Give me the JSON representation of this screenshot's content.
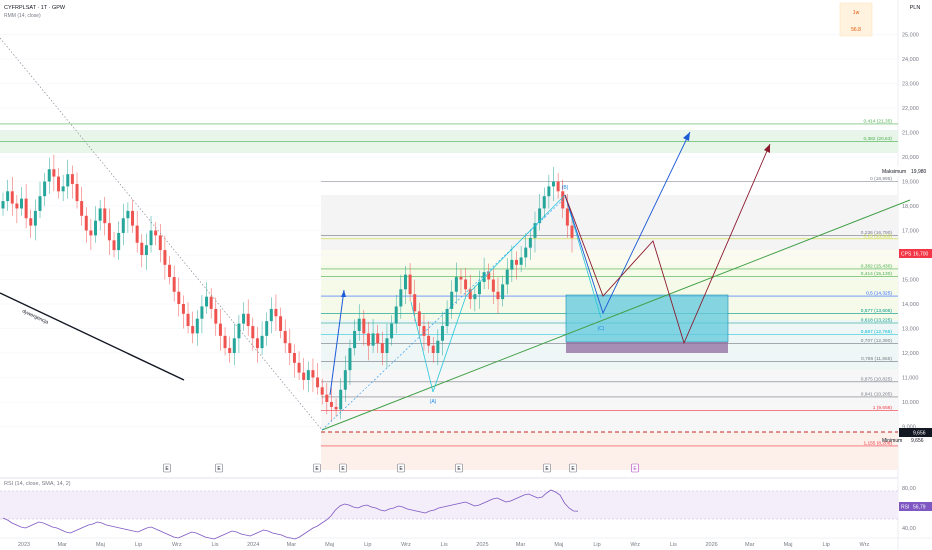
{
  "header": {
    "symbol_line": "CYFRPLSAT · 1T · GPW",
    "indicator_line": "RMM (14, close)"
  },
  "timeframe_box": {
    "label": "1w",
    "value": "56.8"
  },
  "price_axis": {
    "currency": "PLN",
    "ticks": [
      "25,000",
      "24,000",
      "23,000",
      "22,000",
      "21,000",
      "20,000",
      "19,000",
      "18,000",
      "17,000",
      "16,000",
      "15,000",
      "14,000",
      "13,000",
      "12,000",
      "11,000",
      "10,000",
      "9,000"
    ],
    "max_label": "Maksimum",
    "max_value": "19,980",
    "min_label": "Minimum",
    "min_value": "9,656",
    "cps_label": "CPS",
    "cps_value": "16,700",
    "last_value": "9,656"
  },
  "time_axis": {
    "labels": [
      "2023",
      "Mar",
      "Maj",
      "Lip",
      "Wrz",
      "Lis",
      "2024",
      "Mar",
      "Maj",
      "Lip",
      "Wrz",
      "Lis",
      "2025",
      "Mar",
      "Maj",
      "Lip",
      "Wrz",
      "Lis",
      "2026",
      "Mar",
      "Maj",
      "Lip",
      "Wrz"
    ]
  },
  "fibonacci": {
    "levels": [
      {
        "label": "0,414 (21,35)",
        "price": 21.35,
        "color": "#4caf50"
      },
      {
        "label": "0,382 (20,63)",
        "price": 20.63,
        "color": "#4caf50"
      },
      {
        "label": "0 (18,995)",
        "price": 18.995,
        "color": "#787b86"
      },
      {
        "label": "0,236 (16,790)",
        "price": 16.79,
        "color": "#787b86"
      },
      {
        "label": "0,25 (16,660)",
        "price": 16.66,
        "color": "#cddc39"
      },
      {
        "label": "0,382 (15,430)",
        "price": 15.43,
        "color": "#4caf50"
      },
      {
        "label": "0,414 (15,130)",
        "price": 15.13,
        "color": "#4caf50"
      },
      {
        "label": "0,5 (14,325)",
        "price": 14.325,
        "color": "#2962ff"
      },
      {
        "label": "0,577 (13,605)",
        "price": 13.605,
        "color": "#009688"
      },
      {
        "label": "0,618 (13,225)",
        "price": 13.225,
        "color": "#009688"
      },
      {
        "label": "0,667 (12,765)",
        "price": 12.765,
        "color": "#00bcd4"
      },
      {
        "label": "0,707 (12,390)",
        "price": 12.39,
        "color": "#787b86"
      },
      {
        "label": "0,786 (11,655)",
        "price": 11.655,
        "color": "#787b86"
      },
      {
        "label": "0,875 (10,825)",
        "price": 10.825,
        "color": "#787b86"
      },
      {
        "label": "0,941 (10,205)",
        "price": 10.205,
        "color": "#787b86"
      },
      {
        "label": "1 (9,656)",
        "price": 9.656,
        "color": "#f23645"
      },
      {
        "label": "1,155 (8,208)",
        "price": 8.208,
        "color": "#f23645"
      }
    ]
  },
  "annotations": {
    "dywergencja": "dywergencja",
    "wave_a": "(A)",
    "wave_b": "(B)",
    "wave_c": "(C)",
    "event_marker": "E"
  },
  "rsi": {
    "label": "RSI (14, close, SMA, 14, 2)",
    "tag": "RSI",
    "value": "56,79",
    "ticks": [
      "80,00",
      "60,00",
      "40,00"
    ],
    "series": [
      50,
      48,
      45,
      43,
      41,
      40,
      42,
      44,
      46,
      45,
      43,
      41,
      40,
      38,
      36,
      35,
      37,
      39,
      41,
      43,
      44,
      46,
      45,
      43,
      42,
      41,
      40,
      39,
      38,
      37,
      36,
      38,
      40,
      41,
      39,
      37,
      35,
      33,
      31,
      30,
      32,
      34,
      36,
      35,
      33,
      31,
      30,
      29,
      31,
      33,
      35,
      37,
      36,
      34,
      33,
      32,
      34,
      36,
      38,
      37,
      35,
      34,
      33,
      31,
      30,
      29,
      31,
      34,
      37,
      40,
      42,
      45,
      48,
      52,
      58,
      62,
      64,
      63,
      61,
      60,
      62,
      63,
      61,
      60,
      58,
      57,
      59,
      60,
      62,
      61,
      59,
      58,
      57,
      56,
      55,
      57,
      58,
      60,
      61,
      62,
      63,
      64,
      65,
      66,
      64,
      62,
      63,
      65,
      67,
      69,
      70,
      68,
      66,
      67,
      69,
      71,
      73,
      74,
      72,
      70,
      71,
      75,
      78,
      76,
      73,
      65,
      60,
      57,
      56.79
    ]
  },
  "chart_data": {
    "type": "candlestick",
    "title": "CYFRPLSAT · 1T · GPW",
    "ylabel": "PLN",
    "ylim": [
      8.0,
      26.0
    ],
    "x_labels": [
      "2023",
      "Mar",
      "Maj",
      "Lip",
      "Wrz",
      "Lis",
      "2024",
      "Mar",
      "Maj",
      "Lip",
      "Wrz",
      "Lis",
      "2025",
      "Mar",
      "Maj",
      "Lip",
      "Wrz",
      "Lis",
      "2026",
      "Mar",
      "Maj",
      "Lip",
      "Wrz"
    ],
    "close_series": [
      18.2,
      18.6,
      18.1,
      17.9,
      18.3,
      17.5,
      17.2,
      17.8,
      18.4,
      19.0,
      19.5,
      19.2,
      18.6,
      18.8,
      19.3,
      18.9,
      18.2,
      17.6,
      17.0,
      16.8,
      17.4,
      17.9,
      17.3,
      16.6,
      16.2,
      16.9,
      17.5,
      17.8,
      17.2,
      16.5,
      16.0,
      16.4,
      17.0,
      16.8,
      16.2,
      15.6,
      15.1,
      14.5,
      14.0,
      13.6,
      13.1,
      12.8,
      13.4,
      13.9,
      14.3,
      13.8,
      13.2,
      12.7,
      12.2,
      12.0,
      12.6,
      13.2,
      13.6,
      13.1,
      12.6,
      12.2,
      12.7,
      13.3,
      13.8,
      13.5,
      12.9,
      12.4,
      12.0,
      11.6,
      11.2,
      10.9,
      11.3,
      11.0,
      10.6,
      10.3,
      10.0,
      9.8,
      9.7,
      10.5,
      11.3,
      12.2,
      12.9,
      13.4,
      12.8,
      12.3,
      12.8,
      12.4,
      12.0,
      12.6,
      13.2,
      13.9,
      14.6,
      15.2,
      14.4,
      13.7,
      13.1,
      12.7,
      12.3,
      12.0,
      12.5,
      13.1,
      13.8,
      14.5,
      15.1,
      15.0,
      14.6,
      14.2,
      14.4,
      14.9,
      15.3,
      15.0,
      14.5,
      14.2,
      14.8,
      15.4,
      15.8,
      15.6,
      15.9,
      16.3,
      16.7,
      17.3,
      17.9,
      18.4,
      18.8,
      19.0,
      18.6,
      17.9,
      17.2,
      16.7
    ],
    "candle_count": 124,
    "fib_levels": [
      21.35,
      20.63,
      18.995,
      16.79,
      16.66,
      15.43,
      15.13,
      14.325,
      13.605,
      13.225,
      12.765,
      12.39,
      11.655,
      10.825,
      10.205,
      9.656,
      8.208
    ],
    "maximum": 19.98,
    "minimum": 9.656,
    "current_price": 16.7,
    "grid": true
  }
}
